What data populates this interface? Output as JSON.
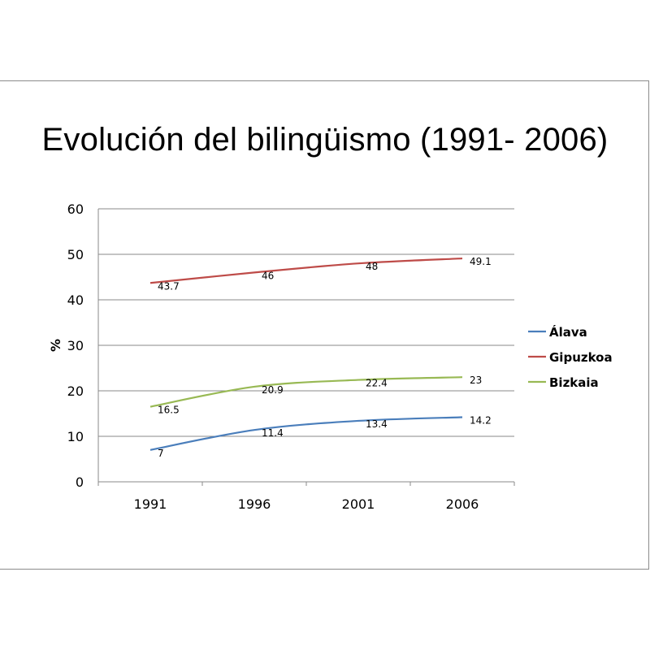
{
  "chart_data": {
    "type": "line",
    "title": "Evolución del bilingüismo (1991- 2006)",
    "ylabel": "%",
    "xlabel": "",
    "categories": [
      "1991",
      "1996",
      "2001",
      "2006"
    ],
    "ylim": [
      0,
      60
    ],
    "yticks": [
      0,
      10,
      20,
      30,
      40,
      50,
      60
    ],
    "grid": true,
    "legend": "right",
    "series": [
      {
        "name": "Álava",
        "color": "#4a7ebb",
        "values": [
          7,
          11.4,
          13.4,
          14.2
        ],
        "labels": [
          "7",
          "11.4",
          "13.4",
          "14.2"
        ]
      },
      {
        "name": "Gipuzkoa",
        "color": "#be4b48",
        "values": [
          43.7,
          46,
          48,
          49.1
        ],
        "labels": [
          "43.7",
          "46",
          "48",
          "49.1"
        ]
      },
      {
        "name": "Bizkaia",
        "color": "#98b954",
        "values": [
          16.5,
          20.9,
          22.4,
          23
        ],
        "labels": [
          "16.5",
          "20.9",
          "22.4",
          "23"
        ]
      }
    ]
  }
}
